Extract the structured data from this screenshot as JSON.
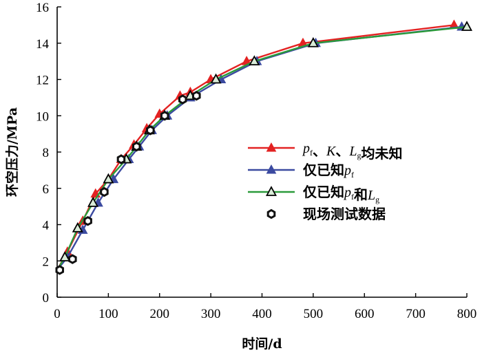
{
  "chart_data": {
    "type": "line",
    "xlabel": "时间/d",
    "ylabel": "环空压力/MPa",
    "xlim": [
      0,
      800
    ],
    "ylim": [
      0,
      16
    ],
    "x_ticks": [
      "0",
      "100",
      "200",
      "300",
      "400",
      "500",
      "600",
      "700",
      "800"
    ],
    "y_ticks": [
      "0",
      "2",
      "4",
      "6",
      "8",
      "10",
      "12",
      "14",
      "16"
    ],
    "legend_position": "right",
    "series": [
      {
        "name": "pf、K、Lg均未知",
        "legend": {
          "p": "p",
          "p_sub": "f",
          "mid": "、K、",
          "L": "L",
          "L_sub": "g",
          "tail": "均未知"
        },
        "color": "#e32222",
        "marker": "filled-triangle",
        "x": [
          0,
          20,
          50,
          75,
          100,
          125,
          150,
          175,
          200,
          240,
          260,
          300,
          370,
          480,
          775
        ],
        "y": [
          1.5,
          2.5,
          4.2,
          5.7,
          6.5,
          7.6,
          8.4,
          9.3,
          10.1,
          11.1,
          11.3,
          12.0,
          13.0,
          14.0,
          15.0
        ]
      },
      {
        "name": "仅已知pf",
        "legend": {
          "prefix": "仅已知",
          "p": "p",
          "p_sub": "f"
        },
        "color": "#3b4aa0",
        "marker": "filled-triangle",
        "x": [
          0,
          20,
          50,
          80,
          110,
          140,
          160,
          185,
          215,
          260,
          320,
          390,
          505,
          790
        ],
        "y": [
          1.5,
          2.2,
          3.7,
          5.2,
          6.5,
          7.6,
          8.3,
          9.2,
          10.0,
          11.0,
          12.0,
          13.0,
          14.0,
          14.9
        ]
      },
      {
        "name": "仅已知pf和Lg",
        "legend": {
          "prefix": "仅已知",
          "p": "p",
          "p_sub": "f",
          "mid": "和",
          "L": "L",
          "L_sub": "g"
        },
        "color": "#2a9a3a",
        "marker": "open-triangle",
        "x": [
          0,
          15,
          40,
          70,
          100,
          135,
          155,
          180,
          210,
          260,
          310,
          385,
          500,
          800
        ],
        "y": [
          1.5,
          2.2,
          3.8,
          5.2,
          6.5,
          7.6,
          8.3,
          9.2,
          10.0,
          11.1,
          12.0,
          13.0,
          14.0,
          14.9
        ]
      },
      {
        "name": "现场测试数据",
        "legend": {
          "prefix": "现场测试数据"
        },
        "color": "#111111",
        "marker": "open-hexagon",
        "x": [
          5,
          30,
          60,
          92,
          125,
          155,
          182,
          210,
          245,
          272
        ],
        "y": [
          1.5,
          2.1,
          4.2,
          5.8,
          7.6,
          8.3,
          9.2,
          10.0,
          10.9,
          11.1
        ]
      }
    ]
  }
}
